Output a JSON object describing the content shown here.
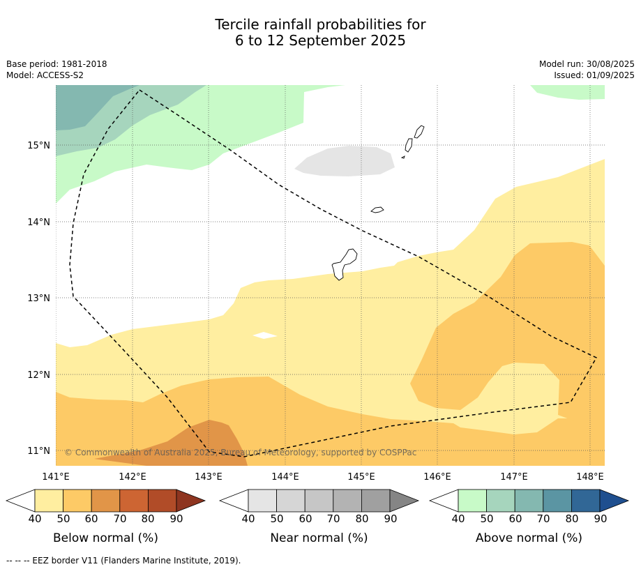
{
  "title": {
    "line1": "Tercile rainfall probabilities for",
    "line2": "6 to 12 September 2025"
  },
  "meta_left": {
    "base_period": "Base period: 1981-2018",
    "model": "Model: ACCESS-S2"
  },
  "meta_right": {
    "model_run": "Model run: 30/08/2025",
    "issued": "Issued: 01/09/2025"
  },
  "map": {
    "lon_labels": [
      "141°E",
      "142°E",
      "143°E",
      "144°E",
      "145°E",
      "146°E",
      "147°E",
      "148°E"
    ],
    "lat_labels": [
      "15°N",
      "14°N",
      "13°N",
      "12°N",
      "11°N"
    ],
    "copyright": "© Commonwealth of Australia 2025, Bureau of Meteorology, supported by COSPPac"
  },
  "colorbars": [
    {
      "label": "Below normal (%)",
      "ticks": [
        "40",
        "50",
        "60",
        "70",
        "80",
        "90"
      ],
      "colors": [
        "#ffeea0",
        "#fdca66",
        "#e19548",
        "#cd6533",
        "#b14c28",
        "#8e3520"
      ]
    },
    {
      "label": "Near normal (%)",
      "ticks": [
        "40",
        "50",
        "60",
        "70",
        "80",
        "90"
      ],
      "colors": [
        "#e5e5e5",
        "#d6d6d6",
        "#c6c6c6",
        "#b3b3b3",
        "#a0a0a0",
        "#858585"
      ]
    },
    {
      "label": "Above normal (%)",
      "ticks": [
        "40",
        "50",
        "60",
        "70",
        "80",
        "90"
      ],
      "colors": [
        "#c8fac8",
        "#a6d5bd",
        "#84b8b0",
        "#5b95a3",
        "#316796",
        "#1f4f8f"
      ]
    }
  ],
  "footnote": "--  --  -- EEZ border V11 (Flanders Marine Institute, 2019)."
}
